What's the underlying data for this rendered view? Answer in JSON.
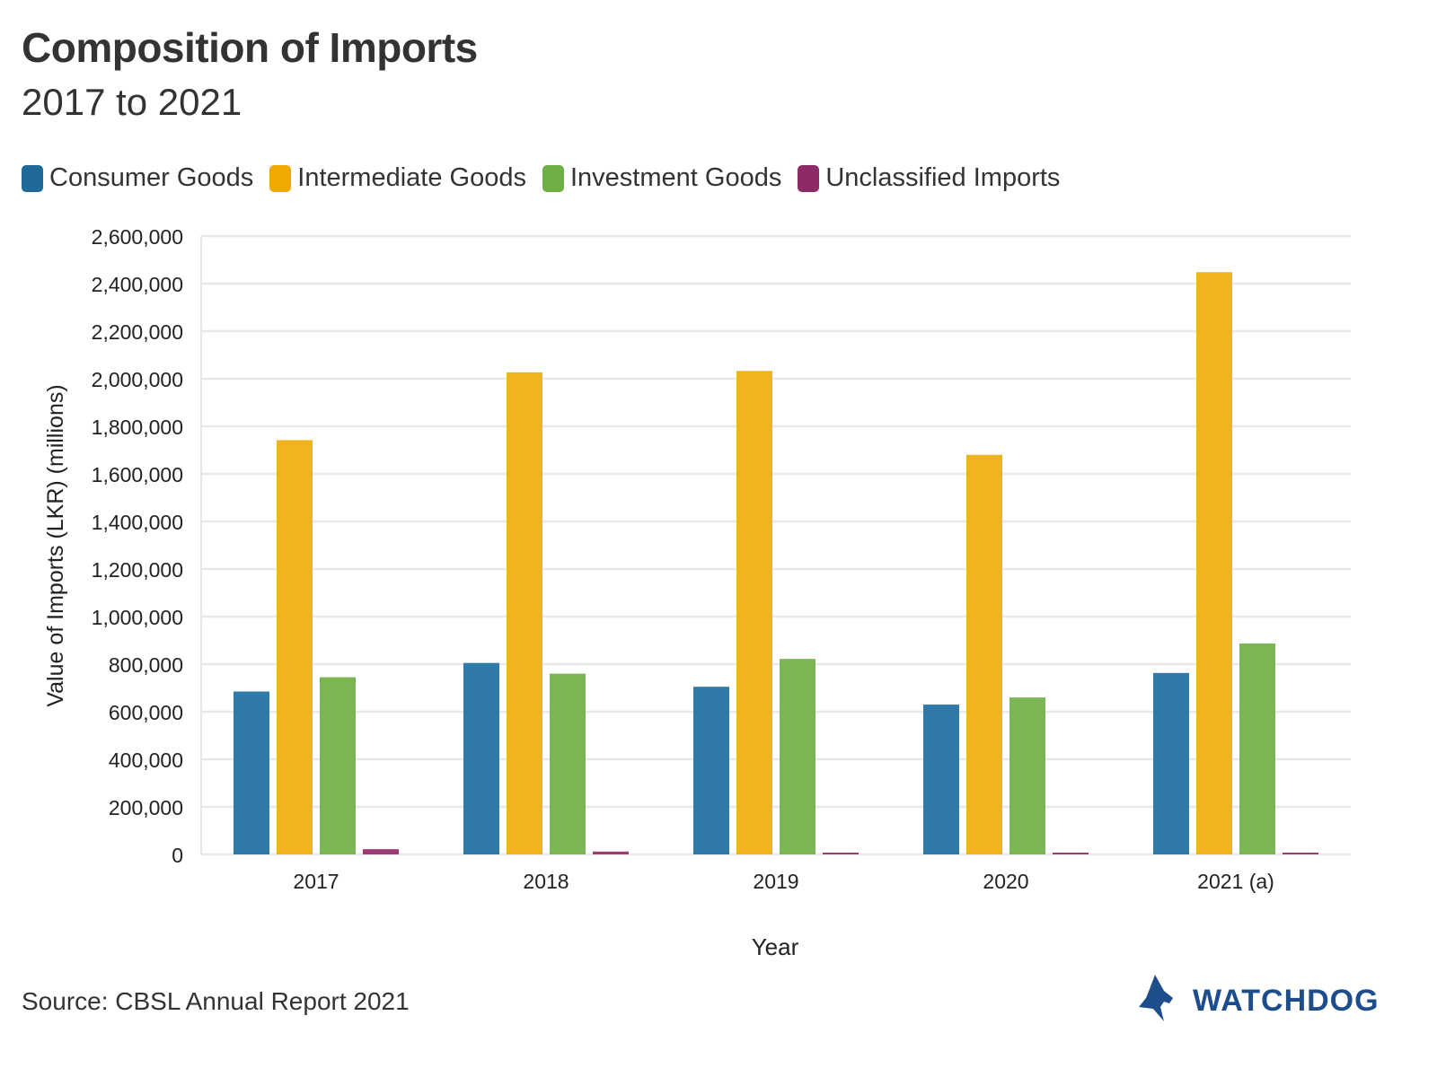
{
  "header": {
    "title": "Composition of Imports",
    "subtitle": "2017 to 2021"
  },
  "footer": {
    "source": "Source: CBSL Annual Report 2021",
    "logo_text": "WATCHDOG",
    "logo_icon": "dog-head-icon"
  },
  "colors": {
    "consumer": "#2f7aa8",
    "intermediate": "#f0b41c",
    "investment": "#7ab752",
    "unclassified": "#9c3a73",
    "grid": "#e8e8e8",
    "logo": "#1e4d8c"
  },
  "legend": [
    {
      "label": "Consumer Goods",
      "color": "#1f6a98"
    },
    {
      "label": "Intermediate Goods",
      "color": "#f0a900"
    },
    {
      "label": "Investment Goods",
      "color": "#6eaf45"
    },
    {
      "label": "Unclassified Imports",
      "color": "#8e2a66"
    }
  ],
  "chart_data": {
    "type": "bar",
    "xlabel": "Year",
    "ylabel": "Value of Imports (LKR) (millions)",
    "categories": [
      "2017",
      "2018",
      "2019",
      "2020",
      "2021 (a)"
    ],
    "ylim": [
      0,
      2600000
    ],
    "yticks": [
      0,
      200000,
      400000,
      600000,
      800000,
      1000000,
      1200000,
      1400000,
      1600000,
      1800000,
      2000000,
      2200000,
      2400000,
      2600000
    ],
    "ytick_labels": [
      "0",
      "200,000",
      "400,000",
      "600,000",
      "800,000",
      "1,000,000",
      "1,200,000",
      "1,400,000",
      "1,600,000",
      "1,800,000",
      "2,000,000",
      "2,200,000",
      "2,400,000",
      "2,600,000"
    ],
    "grid": true,
    "legend_position": "top",
    "series": [
      {
        "name": "Consumer Goods",
        "values": [
          685000,
          805000,
          705000,
          630000,
          763000
        ]
      },
      {
        "name": "Intermediate Goods",
        "values": [
          1742000,
          2027000,
          2033000,
          1680000,
          2448000
        ]
      },
      {
        "name": "Investment Goods",
        "values": [
          745000,
          760000,
          822000,
          660000,
          887000
        ]
      },
      {
        "name": "Unclassified Imports",
        "values": [
          22000,
          12000,
          2000,
          3000,
          3000
        ]
      }
    ]
  }
}
